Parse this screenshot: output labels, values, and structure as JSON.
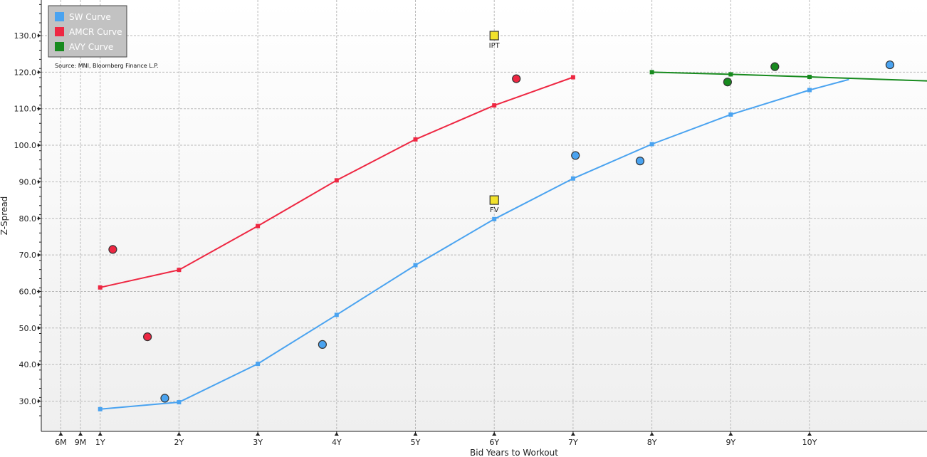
{
  "chart_data": {
    "type": "line",
    "xlabel": "Bid Years to Workout",
    "ylabel": "Z-Spread",
    "xlim": [
      0,
      10.5
    ],
    "ylim": [
      26,
      144
    ],
    "x_ticks": [
      {
        "value": 0.5,
        "label": "6M"
      },
      {
        "value": 0.75,
        "label": "9M"
      },
      {
        "value": 1,
        "label": "1Y"
      },
      {
        "value": 2,
        "label": "2Y"
      },
      {
        "value": 3,
        "label": "3Y"
      },
      {
        "value": 4,
        "label": "4Y"
      },
      {
        "value": 5,
        "label": "5Y"
      },
      {
        "value": 6,
        "label": "6Y"
      },
      {
        "value": 7,
        "label": "7Y"
      },
      {
        "value": 8,
        "label": "8Y"
      },
      {
        "value": 9,
        "label": "9Y"
      },
      {
        "value": 10,
        "label": "10Y"
      }
    ],
    "y_ticks": [
      30,
      40,
      50,
      60,
      70,
      80,
      90,
      100,
      110,
      120,
      130
    ],
    "y_tick_labels": [
      "30.0",
      "40.0",
      "50.0",
      "60.0",
      "70.0",
      "80.0",
      "90.0",
      "100.0",
      "110.0",
      "120.0",
      "130.0"
    ],
    "grid": true,
    "legend_position": "top-left",
    "source": "Source: MNI, Bloomberg Finance L.P.",
    "series": [
      {
        "name": "SW Curve",
        "color": "#4aa3f0",
        "curve": [
          [
            1,
            27.8
          ],
          [
            2,
            29.7
          ],
          [
            3,
            40.2
          ],
          [
            4,
            53.6
          ],
          [
            5,
            67.2
          ],
          [
            6,
            79.8
          ],
          [
            7,
            90.9
          ],
          [
            8,
            100.3
          ],
          [
            9,
            108.4
          ],
          [
            10,
            115.1
          ],
          [
            10.5,
            118
          ]
        ],
        "markers": [
          [
            1,
            27.8
          ],
          [
            2,
            29.7
          ],
          [
            3,
            40.2
          ],
          [
            4,
            53.6
          ],
          [
            5,
            67.2
          ],
          [
            6,
            79.8
          ],
          [
            7,
            90.9
          ],
          [
            8,
            100.3
          ],
          [
            9,
            108.4
          ],
          [
            10,
            115.1
          ]
        ],
        "bonds": [
          [
            1.82,
            30.8
          ],
          [
            3.82,
            45.5
          ],
          [
            7.03,
            97.2
          ],
          [
            7.85,
            95.7
          ],
          [
            11.02,
            122.0
          ]
        ]
      },
      {
        "name": "AMCR Curve",
        "color": "#ee2742",
        "curve": [
          [
            1,
            61.1
          ],
          [
            2,
            65.9
          ],
          [
            3,
            77.9
          ],
          [
            4,
            90.4
          ],
          [
            5,
            101.6
          ],
          [
            6,
            110.9
          ],
          [
            7,
            118.6
          ]
        ],
        "markers": [
          [
            1,
            61.1
          ],
          [
            2,
            65.9
          ],
          [
            3,
            77.9
          ],
          [
            4,
            90.4
          ],
          [
            5,
            101.6
          ],
          [
            6,
            110.9
          ],
          [
            7,
            118.6
          ]
        ],
        "bonds": [
          [
            1.16,
            71.5
          ],
          [
            1.6,
            47.6
          ],
          [
            6.28,
            118.2
          ]
        ]
      },
      {
        "name": "AVY Curve",
        "color": "#178a1e",
        "curve": [
          [
            8,
            120.0
          ],
          [
            9,
            119.4
          ],
          [
            10,
            118.7
          ],
          [
            11.5,
            117.6
          ]
        ],
        "markers": [
          [
            8,
            120.0
          ],
          [
            9,
            119.4
          ],
          [
            10,
            118.7
          ]
        ],
        "bonds": [
          [
            8.96,
            117.3
          ],
          [
            9.56,
            121.5
          ]
        ]
      }
    ],
    "annotations": [
      {
        "label": "IPT",
        "x": 6,
        "y": 130.0,
        "color": "#f2e22a"
      },
      {
        "label": "FV",
        "x": 6,
        "y": 85.0,
        "color": "#f2e22a"
      }
    ]
  }
}
